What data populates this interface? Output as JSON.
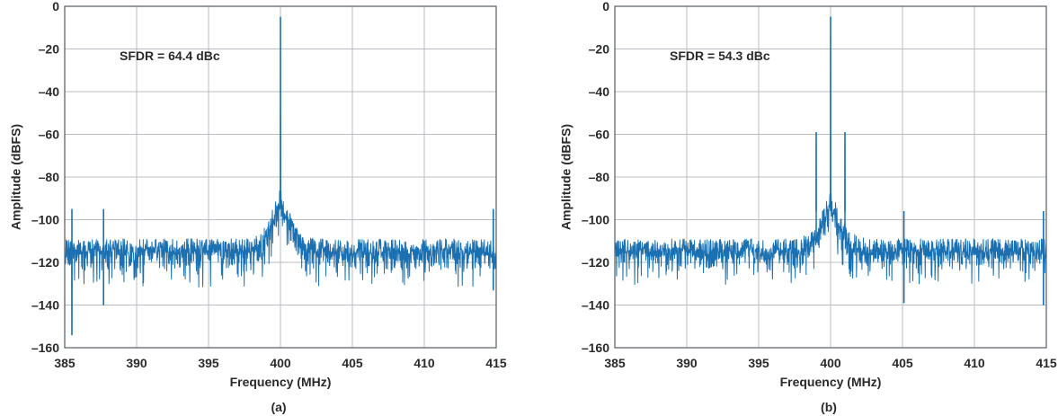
{
  "colors": {
    "trace": "#1a70b0",
    "grid": "#b8bcc2",
    "frame": "#555a60",
    "text": "#2a2a2a"
  },
  "chart_data": [
    {
      "type": "line",
      "caption": "(a)",
      "xlabel": "Frequency (MHz)",
      "ylabel": "Amplitude (dBFS)",
      "xlim": [
        385,
        415
      ],
      "ylim": [
        -160,
        0
      ],
      "xticks": [
        385,
        390,
        395,
        400,
        405,
        410,
        415
      ],
      "yticks": [
        0,
        -20,
        -40,
        -60,
        -80,
        -100,
        -120,
        -140,
        -160
      ],
      "xtick_labels": [
        "385",
        "390",
        "395",
        "400",
        "405",
        "410",
        "415"
      ],
      "ytick_labels": [
        "0",
        "–20",
        "–40",
        "–60",
        "–80",
        "–100",
        "–120",
        "–140",
        "–160"
      ],
      "grid": true,
      "annotation": "SFDR = 64.4 dBc",
      "noise_floor": {
        "mean": -113,
        "low": -128,
        "high": -104
      },
      "noise_hump": {
        "center": 400.0,
        "peak": -90
      },
      "peaks": [
        {
          "x": 400.0,
          "y": -5
        },
        {
          "x": 385.5,
          "y": -154
        },
        {
          "x": 387.7,
          "y": -140
        },
        {
          "x": 414.8,
          "y": -133
        }
      ]
    },
    {
      "type": "line",
      "caption": "(b)",
      "xlabel": "Frequency (MHz)",
      "ylabel": "Amplitude (dBFS)",
      "xlim": [
        385,
        415
      ],
      "ylim": [
        -160,
        0
      ],
      "xticks": [
        385,
        390,
        395,
        400,
        405,
        410,
        415
      ],
      "yticks": [
        0,
        -20,
        -40,
        -60,
        -80,
        -100,
        -120,
        -140,
        -160
      ],
      "xtick_labels": [
        "385",
        "390",
        "395",
        "400",
        "405",
        "410",
        "415"
      ],
      "ytick_labels": [
        "0",
        "–20",
        "–40",
        "–60",
        "–80",
        "–100",
        "–120",
        "–140",
        "–160"
      ],
      "grid": true,
      "annotation": "SFDR = 54.3 dBc",
      "noise_floor": {
        "mean": -113,
        "low": -127,
        "high": -104
      },
      "noise_hump": {
        "center": 400.0,
        "peak": -91
      },
      "peaks": [
        {
          "x": 400.0,
          "y": -5
        },
        {
          "x": 399.0,
          "y": -59
        },
        {
          "x": 401.0,
          "y": -59
        },
        {
          "x": 405.1,
          "y": -139
        },
        {
          "x": 414.8,
          "y": -140
        }
      ]
    }
  ]
}
